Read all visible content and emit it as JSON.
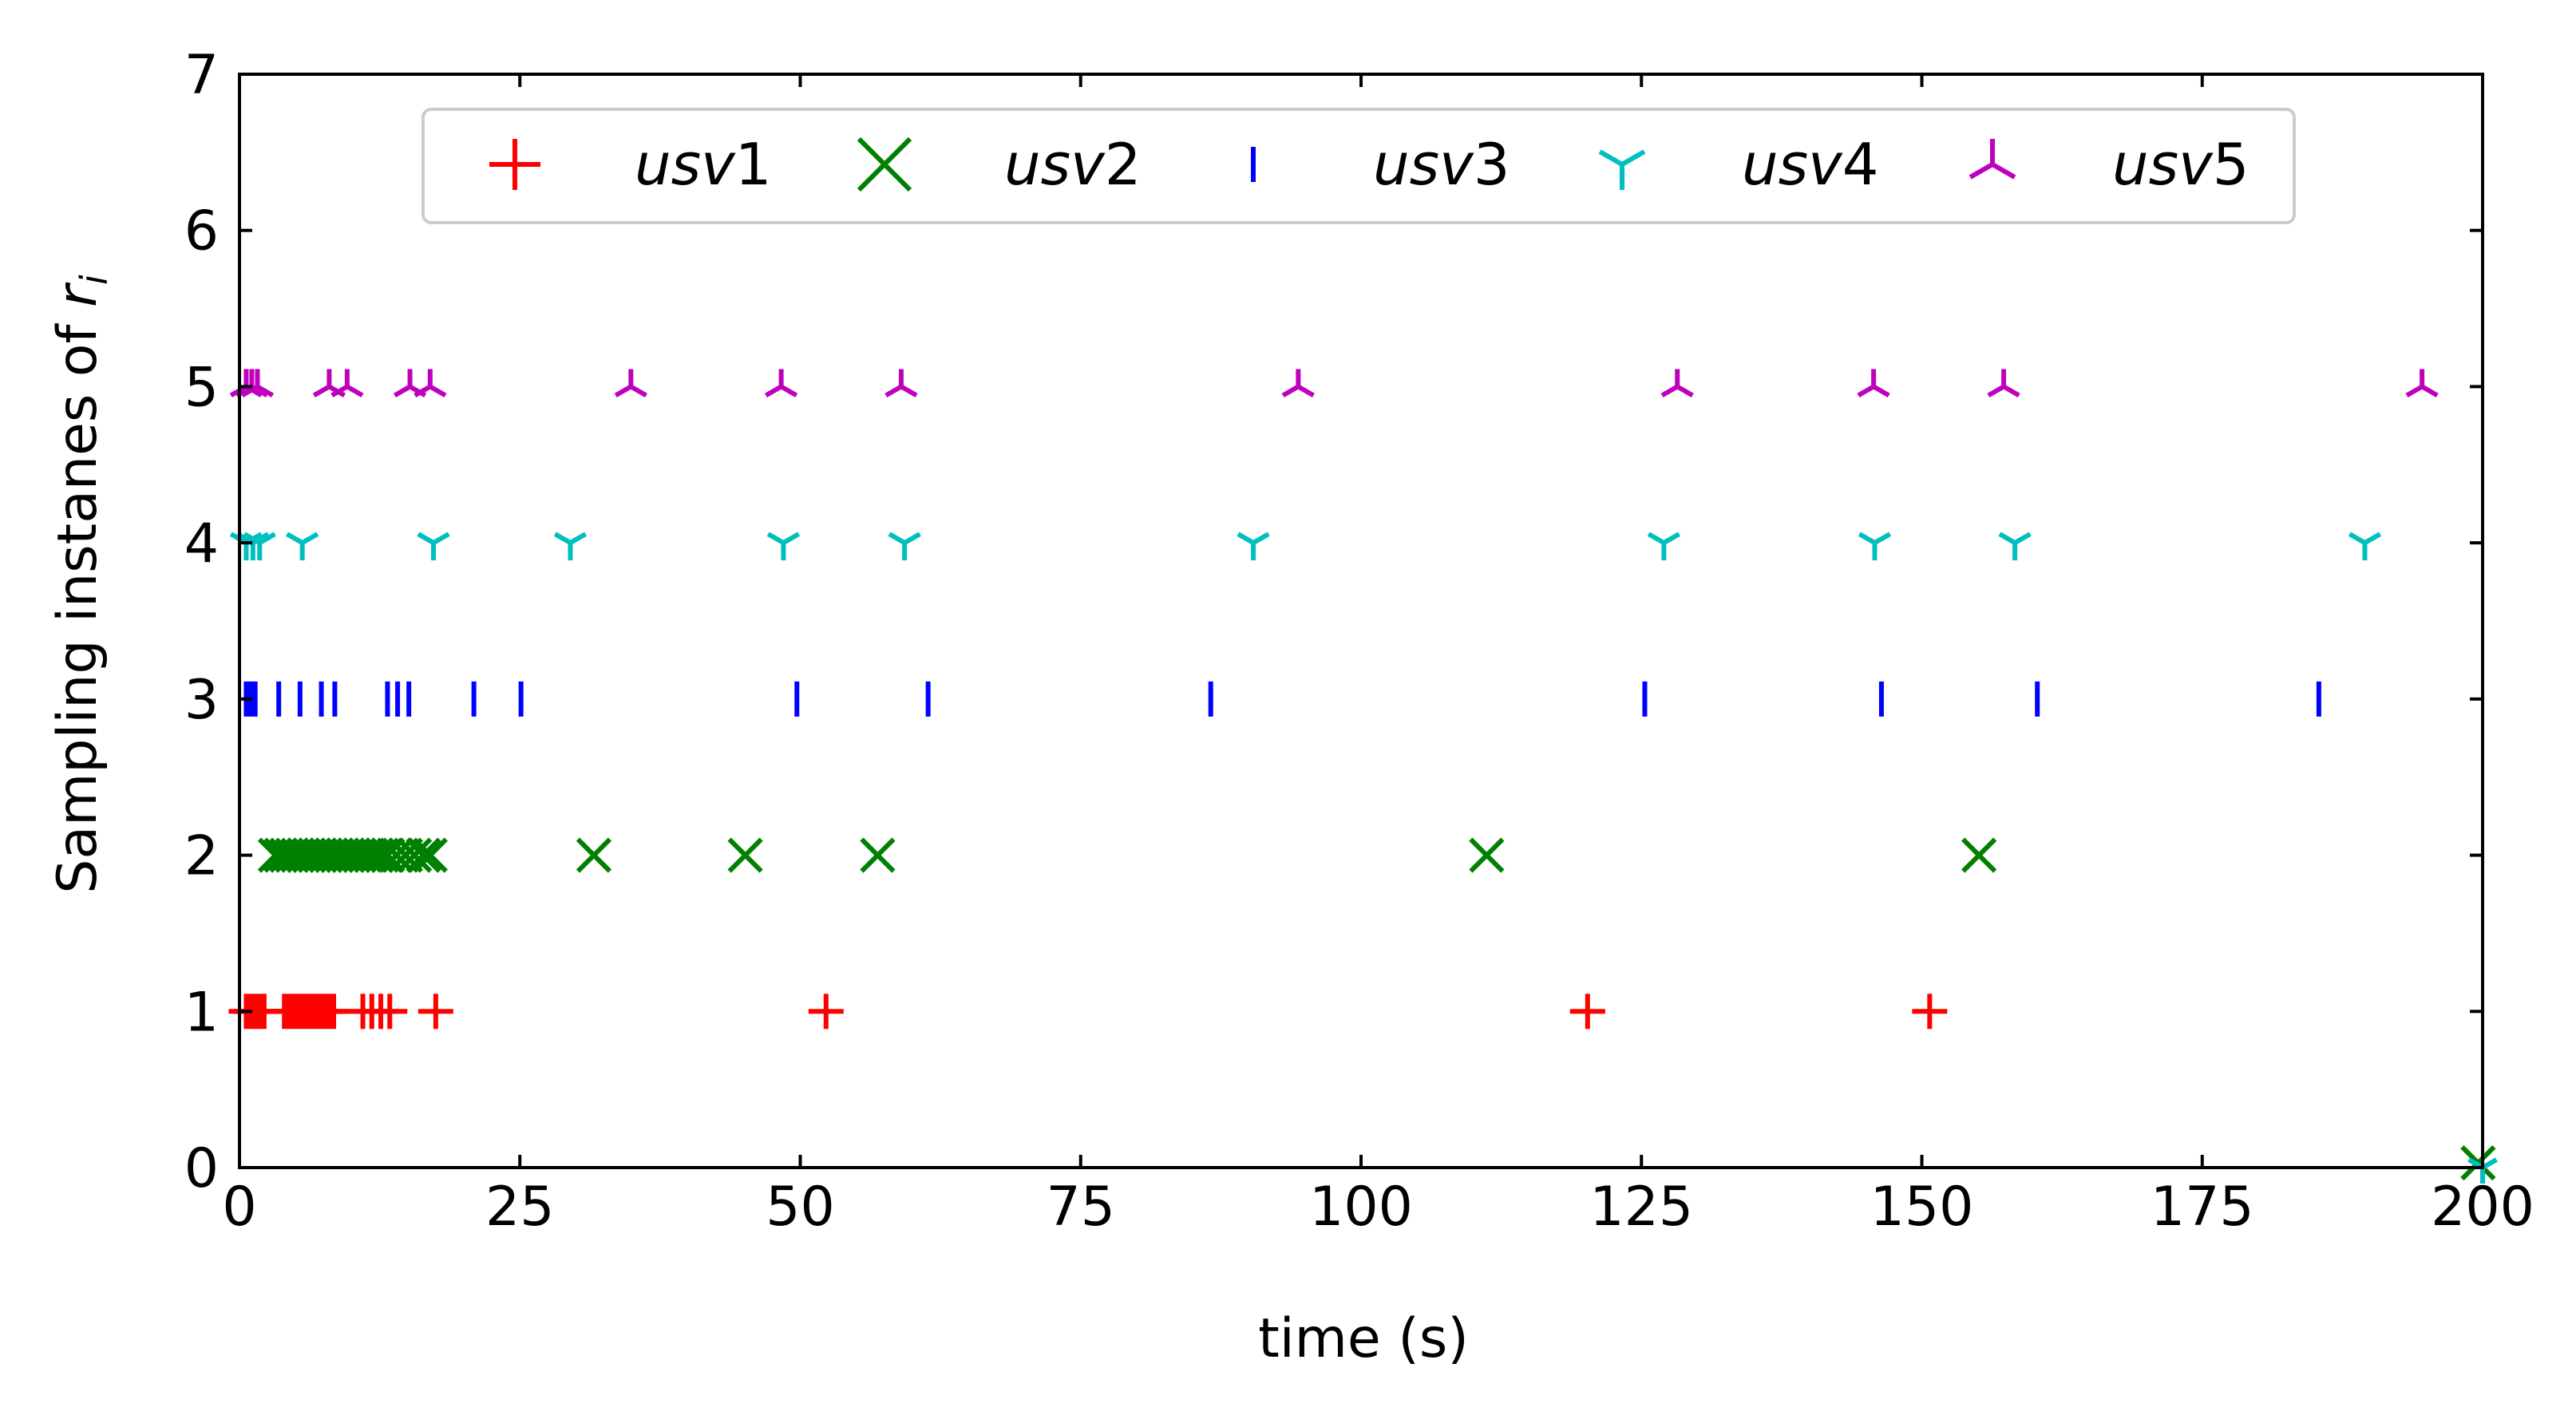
{
  "chart_data": {
    "type": "scatter",
    "xlabel": "time (s)",
    "ylabel": "Sampling instanes of ",
    "ylabel_sym": "r",
    "ylabel_sub": "i",
    "xlim": [
      0,
      200
    ],
    "ylim": [
      0,
      7
    ],
    "xticks": [
      0,
      25,
      50,
      75,
      100,
      125,
      150,
      175,
      200
    ],
    "yticks": [
      0,
      1,
      2,
      3,
      4,
      5,
      6,
      7
    ],
    "grid": false,
    "legend_position": "top-center",
    "series": [
      {
        "name_italic": "usv",
        "name_num": "1",
        "color": "#ff0000",
        "marker": "plus",
        "y": 1,
        "x": [
          0.6,
          1.0,
          1.4,
          1.8,
          2.2,
          4.0,
          4.4,
          4.8,
          5.2,
          5.6,
          6.0,
          6.4,
          6.8,
          7.2,
          7.6,
          8.0,
          8.4,
          11.0,
          11.8,
          12.6,
          13.4,
          17.5,
          52.3,
          120.2,
          150.7
        ]
      },
      {
        "name_italic": "usv",
        "name_num": "2",
        "color": "#008000",
        "marker": "x",
        "y": 2,
        "x": [
          3.2,
          3.7,
          4.2,
          4.7,
          5.2,
          5.7,
          6.2,
          6.7,
          7.2,
          7.7,
          8.2,
          8.7,
          9.2,
          9.7,
          10.2,
          10.7,
          11.2,
          11.7,
          12.2,
          12.7,
          13.2,
          14.0,
          14.8,
          15.6,
          16.4,
          17.0,
          31.6,
          45.1,
          56.9,
          111.2,
          155.1
        ]
      },
      {
        "name_italic": "usv",
        "name_num": "3",
        "color": "#0000ff",
        "marker": "vline",
        "y": 3,
        "x": [
          0.6,
          1.0,
          1.4,
          3.5,
          5.4,
          7.3,
          8.5,
          13.2,
          14.1,
          15.1,
          20.9,
          25.1,
          49.7,
          61.4,
          86.6,
          125.3,
          146.4,
          160.3,
          185.4
        ]
      },
      {
        "name_italic": "usv",
        "name_num": "4",
        "color": "#00bfbf",
        "marker": "tri-down",
        "y": 4,
        "x": [
          0.6,
          1.2,
          1.8,
          5.6,
          17.3,
          29.5,
          48.5,
          59.3,
          90.4,
          127.0,
          145.8,
          158.3,
          189.5
        ]
      },
      {
        "name_italic": "usv",
        "name_num": "5",
        "color": "#bf00bf",
        "marker": "tri-up",
        "y": 5,
        "x": [
          0.6,
          1.1,
          1.6,
          8.0,
          9.6,
          15.2,
          17.0,
          34.9,
          48.3,
          59.0,
          94.4,
          128.2,
          145.7,
          157.3,
          194.6
        ]
      }
    ],
    "annotations": [
      {
        "color": "#008000",
        "marker": "x",
        "x": 199.6,
        "y": 0.03
      },
      {
        "color": "#00bfbf",
        "marker": "tri-down",
        "x": 200.0,
        "y": 0.0
      }
    ]
  }
}
